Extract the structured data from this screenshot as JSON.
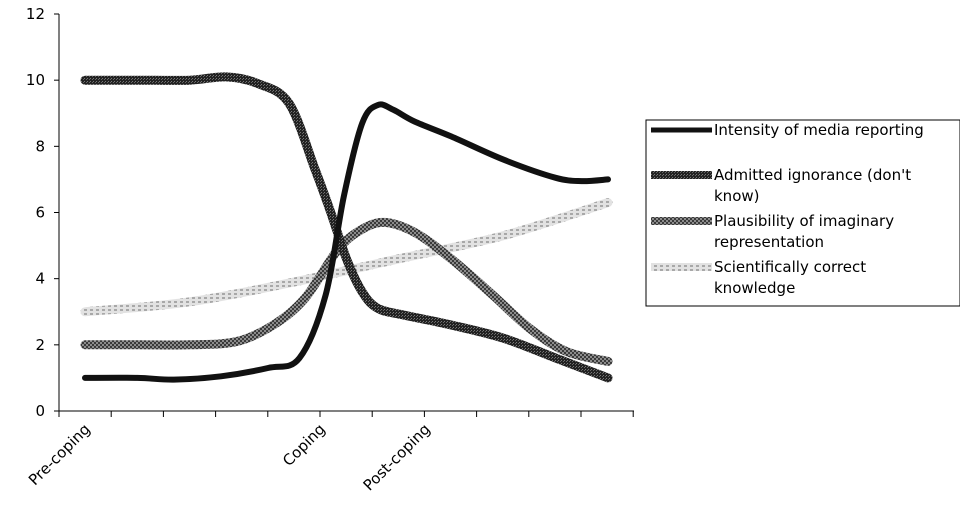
{
  "chart_data": {
    "type": "line",
    "x_categories": [
      "Pre-coping",
      "Coping",
      "Post-coping"
    ],
    "xlim": [
      0,
      10
    ],
    "ylim": [
      0,
      12
    ],
    "ytick_step": 2,
    "yticks": [
      "0",
      "2",
      "4",
      "6",
      "8",
      "10",
      "12"
    ],
    "grid": false,
    "legend_position": "right",
    "series": [
      {
        "name": "Intensity of media reporting",
        "color": "#111111",
        "style": "solid",
        "x": [
          0,
          1,
          1.7,
          2.6,
          3.5,
          4.1,
          4.6,
          4.95,
          5.3,
          5.6,
          5.9,
          6.3,
          7,
          8,
          9,
          9.5,
          10
        ],
        "y": [
          1,
          1,
          0.95,
          1.05,
          1.3,
          1.6,
          3.5,
          6.5,
          8.7,
          9.25,
          9.1,
          8.75,
          8.3,
          7.6,
          7.05,
          6.95,
          7
        ]
      },
      {
        "name": "Admitted ignorance (don't know)",
        "color": "#2b2b2b",
        "style": "fine-texture",
        "x": [
          0,
          1,
          2,
          2.7,
          3.3,
          3.9,
          4.4,
          4.7,
          5,
          5.3,
          5.6,
          6.1,
          7,
          8,
          9,
          10
        ],
        "y": [
          10,
          10,
          10,
          10.1,
          9.9,
          9.3,
          7.3,
          6.0,
          4.6,
          3.6,
          3.1,
          2.9,
          2.6,
          2.2,
          1.6,
          1.0
        ]
      },
      {
        "name": "Plausibility of imaginary representation",
        "color": "#6e6e6e",
        "style": "checker",
        "x": [
          0,
          1,
          2,
          2.9,
          3.6,
          4.2,
          4.8,
          5.2,
          5.7,
          6.3,
          7,
          7.8,
          8.5,
          9.2,
          10
        ],
        "y": [
          2,
          2,
          2,
          2.1,
          2.6,
          3.4,
          4.8,
          5.4,
          5.7,
          5.4,
          4.6,
          3.5,
          2.5,
          1.8,
          1.5
        ]
      },
      {
        "name": "Scientifically correct knowledge",
        "color": "#c8c8c8",
        "style": "dotted",
        "x": [
          0,
          2,
          4,
          6,
          8,
          10
        ],
        "y": [
          3,
          3.3,
          3.9,
          4.6,
          5.3,
          6.3
        ]
      }
    ]
  }
}
